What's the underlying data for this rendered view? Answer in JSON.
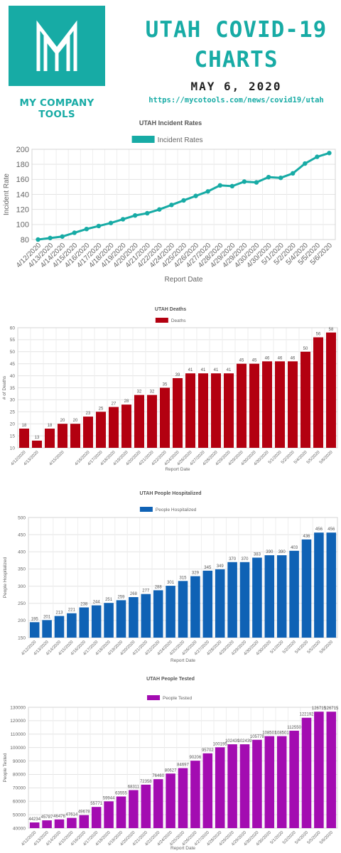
{
  "header": {
    "brand": "MY COMPANY TOOLS",
    "title_line1": "UTAH COVID-19",
    "title_line2": "CHARTS",
    "date": "MAY 6, 2020",
    "url": "https://mycotools.com/news/covid19/utah",
    "accent_color": "#17aba5",
    "logo_icon": "my-monogram-logo"
  },
  "chart_data": [
    {
      "type": "line",
      "title": "UTAH Incident Rates",
      "legend": "Incident Rates",
      "legend_position": "top",
      "color": "#17aba5",
      "xlabel": "Report Date",
      "ylabel": "Incident Rate",
      "ylim": [
        80,
        200
      ],
      "yticks": [
        80,
        100,
        120,
        140,
        160,
        180,
        200
      ],
      "grid": true,
      "show_values": false,
      "categories": [
        "4/12/2020",
        "4/13/2020",
        "4/14/2020",
        "4/15/2020",
        "4/16/2020",
        "4/17/2020",
        "4/18/2020",
        "4/19/2020",
        "4/20/2020",
        "4/21/2020",
        "4/22/2020",
        "4/24/2020",
        "4/25/2020",
        "4/26/2020",
        "4/27/2020",
        "4/28/2020",
        "4/29/2020",
        "4/29/2020",
        "4/30/2020",
        "4/30/2020",
        "5/1/2020",
        "5/2/2020",
        "5/4/2020",
        "5/5/2020",
        "5/6/2020"
      ],
      "values": [
        80,
        82,
        84,
        89,
        94,
        98,
        102,
        107,
        112,
        115,
        120,
        126,
        132,
        138,
        144,
        152,
        151,
        157,
        156,
        163,
        162,
        168,
        181,
        190,
        195
      ]
    },
    {
      "type": "bar",
      "title": "UTAH Deaths",
      "legend": "Deaths",
      "legend_position": "top",
      "color": "#b30010",
      "xlabel": "Report Date",
      "ylabel": "# of Deaths",
      "ylim": [
        10,
        60
      ],
      "yticks": [
        10,
        15,
        20,
        25,
        30,
        35,
        40,
        45,
        50,
        55,
        60
      ],
      "grid": true,
      "show_values": true,
      "categories": [
        "4/12/2020",
        "4/13/2020",
        "",
        "4/15/2020",
        "",
        "4/16/2020",
        "4/17/2020",
        "4/18/2020",
        "4/19/2020",
        "4/20/2020",
        "4/21/2020",
        "4/22/2020",
        "4/24/2020",
        "4/26/2020",
        "4/27/2020",
        "4/28/2020",
        "4/29/2020",
        "4/29/2020",
        "4/30/2020",
        "4/30/2020",
        "5/1/2020",
        "5/2/2020",
        "5/4/2020",
        "5/5/2020",
        "5/6/2020"
      ],
      "values": [
        18,
        13,
        18,
        20,
        20,
        23,
        25,
        27,
        28,
        32,
        32,
        35,
        39,
        41,
        41,
        41,
        41,
        45,
        45,
        46,
        46,
        46,
        50,
        56,
        58
      ]
    },
    {
      "type": "bar",
      "title": "UTAH People Hospitalized",
      "legend": "People Hospitalized",
      "legend_position": "top",
      "color": "#0f62b5",
      "xlabel": "Report Date",
      "ylabel": "People Hospitalized",
      "ylim": [
        150,
        500
      ],
      "yticks": [
        150,
        200,
        250,
        300,
        350,
        400,
        450,
        500
      ],
      "grid": true,
      "show_values": true,
      "categories": [
        "4/12/2020",
        "4/13/2020",
        "4/14/2020",
        "4/15/2020",
        "4/16/2020",
        "4/17/2020",
        "4/18/2020",
        "4/19/2020",
        "4/20/2020",
        "4/21/2020",
        "4/22/2020",
        "4/24/2020",
        "4/25/2020",
        "4/26/2020",
        "4/27/2020",
        "4/28/2020",
        "4/29/2020",
        "4/29/2020",
        "4/30/2020",
        "4/30/2020",
        "5/1/2020",
        "5/2/2020",
        "5/4/2020",
        "5/5/2020",
        "5/6/2020"
      ],
      "values": [
        195,
        201,
        213,
        221,
        238,
        244,
        251,
        259,
        268,
        277,
        288,
        301,
        315,
        329,
        345,
        349,
        370,
        370,
        383,
        390,
        390,
        403,
        436,
        456,
        456
      ]
    },
    {
      "type": "bar",
      "title": "UTAH People Tested",
      "legend": "People Tested",
      "legend_position": "top",
      "color": "#a30cb1",
      "xlabel": "Report Date",
      "ylabel": "People Tested",
      "ylim": [
        40000,
        130000
      ],
      "yticks": [
        40000,
        50000,
        60000,
        70000,
        80000,
        90000,
        100000,
        110000,
        120000,
        130000
      ],
      "grid": true,
      "show_values": true,
      "categories": [
        "4/12/2020",
        "4/13/2020",
        "4/14/2020",
        "4/15/2020",
        "4/16/2020",
        "4/17/2020",
        "4/18/2020",
        "4/19/2020",
        "4/20/2020",
        "4/21/2020",
        "4/22/2020",
        "4/24/2020",
        "4/25/2020",
        "4/26/2020",
        "4/27/2020",
        "4/28/2020",
        "4/29/2020",
        "4/29/2020",
        "4/30/2020",
        "4/30/2020",
        "5/1/2020",
        "5/2/2020",
        "5/4/2020",
        "5/5/2020",
        "5/6/2020"
      ],
      "values": [
        44234,
        45787,
        46476,
        47614,
        49678,
        55771,
        59944,
        63555,
        68311,
        72358,
        76460,
        80627,
        84697,
        90206,
        95702,
        100195,
        102439,
        102439,
        105778,
        108501,
        108501,
        112550,
        122192,
        126715,
        126715
      ]
    }
  ]
}
